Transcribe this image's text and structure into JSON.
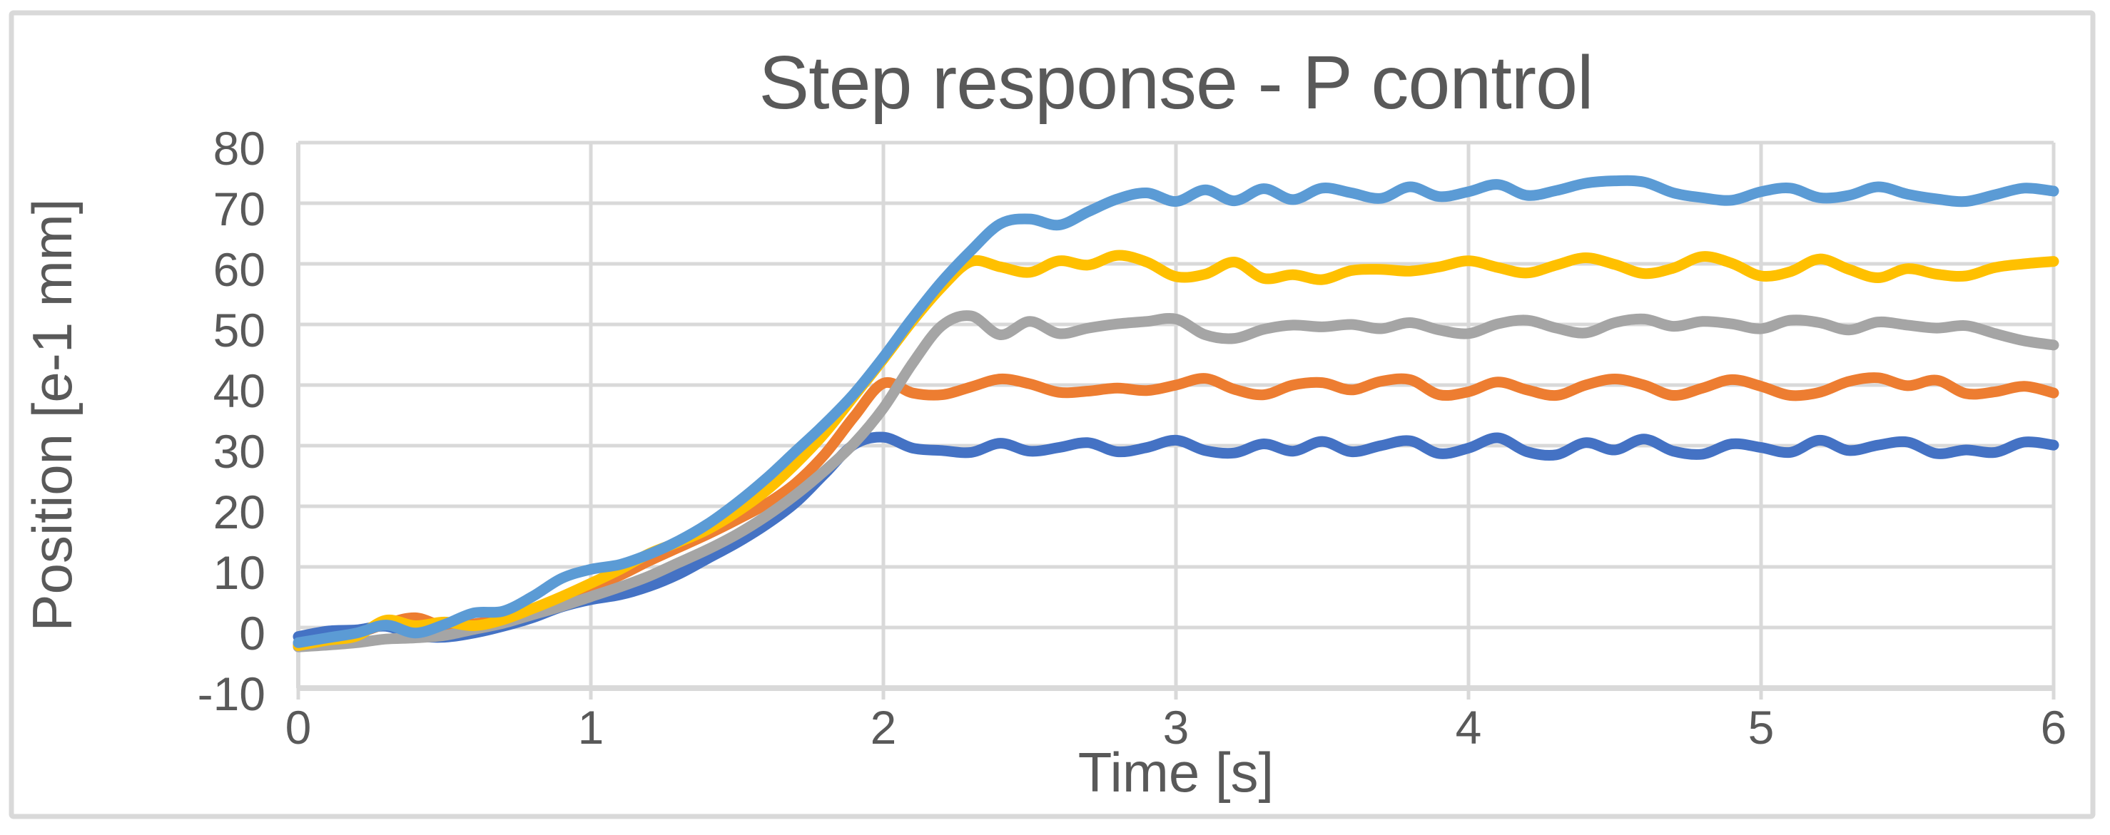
{
  "figure": {
    "background_color": "#FFFFFF",
    "border_color": "#D9D9D9",
    "text_color": "#595959",
    "grid_color": "#D9D9D9"
  },
  "chart_data": {
    "type": "line",
    "title": "Step response - P control",
    "xlabel": "Time [s]",
    "ylabel": "Position [e-1 mm]",
    "x_range": [
      0,
      6
    ],
    "y_range": [
      -10,
      80
    ],
    "x_ticks": [
      0,
      1,
      2,
      3,
      4,
      5,
      6
    ],
    "y_ticks": [
      80,
      70,
      60,
      50,
      40,
      30,
      20,
      10,
      0,
      -10
    ],
    "grid": true,
    "legend_position": "none",
    "line_style": "smooth",
    "x_start": 0,
    "x_step": 0.1,
    "series": [
      {
        "name": "dark-blue (settles ~30)",
        "color": "#4472C4",
        "values": [
          -1.5,
          -0.6,
          -0.4,
          0.2,
          -1.3,
          -1.6,
          -0.9,
          0.2,
          1.6,
          3.4,
          4.6,
          5.4,
          6.8,
          8.8,
          11.4,
          14,
          17,
          20.6,
          25.4,
          30.2,
          31.4,
          29.6,
          29.2,
          28.9,
          30.4,
          29.1,
          29.7,
          30.5,
          29,
          29.7,
          30.9,
          29.2,
          28.8,
          30.3,
          29.1,
          30.7,
          29,
          30,
          30.8,
          28.7,
          29.6,
          31.3,
          29,
          28.5,
          30.5,
          29.3,
          31.1,
          29.1,
          28.6,
          30.3,
          29.7,
          28.9,
          30.9,
          29.2,
          30.1,
          30.6,
          28.7,
          29.3,
          28.9,
          30.6,
          30.1
        ]
      },
      {
        "name": "orange (settles ~40)",
        "color": "#ED7D31",
        "values": [
          -2.8,
          -2,
          -1,
          0.6,
          1.6,
          0.2,
          0.6,
          1.4,
          2.9,
          4.7,
          6.6,
          8.6,
          11,
          13.2,
          15.4,
          17.8,
          20.4,
          23.8,
          28.6,
          34.8,
          40.3,
          38.7,
          38.4,
          39.7,
          41,
          40.2,
          38.8,
          39,
          39.5,
          39.1,
          40,
          41.1,
          39.3,
          38.4,
          40,
          40.4,
          39.2,
          40.6,
          40.9,
          38.4,
          38.9,
          40.5,
          39.2,
          38.3,
          40,
          41,
          40,
          38.3,
          39.5,
          40.9,
          39.8,
          38.3,
          38.8,
          40.6,
          41.2,
          39.9,
          40.8,
          38.6,
          38.9,
          39.8,
          38.7
        ]
      },
      {
        "name": "gray (settles ~50)",
        "color": "#A5A5A5",
        "values": [
          -3.2,
          -2.9,
          -2.5,
          -1.9,
          -1.7,
          -1.3,
          -0.3,
          0.7,
          2.1,
          3.5,
          5.1,
          6.7,
          8.5,
          10.7,
          12.9,
          15.4,
          18.4,
          21.9,
          25.9,
          30.4,
          36.2,
          43.6,
          49.8,
          51.4,
          48.3,
          50.5,
          48.5,
          49.4,
          50.1,
          50.5,
          50.9,
          48.3,
          47.7,
          49.2,
          49.9,
          49.6,
          50,
          49.3,
          50.3,
          49.1,
          48.5,
          50.1,
          50.7,
          49.4,
          48.6,
          50.3,
          50.9,
          49.7,
          50.5,
          50.1,
          49.3,
          50.7,
          50.3,
          49.1,
          50.4,
          49.9,
          49.4,
          49.8,
          48.5,
          47.3,
          46.6
        ]
      },
      {
        "name": "gold (settles ~60)",
        "color": "#FFC000",
        "values": [
          -3,
          -2.1,
          -1.4,
          1.2,
          0.3,
          0.9,
          0.3,
          1.3,
          3.1,
          5.1,
          7.3,
          9.6,
          12.2,
          14.1,
          16.2,
          19.1,
          22.6,
          27,
          32.1,
          38.2,
          44.3,
          50.6,
          56.2,
          60.4,
          59.5,
          58.6,
          60.5,
          59.8,
          61.4,
          60.3,
          57.9,
          58.3,
          60.3,
          57.6,
          58.2,
          57.4,
          58.9,
          59.1,
          58.8,
          59.5,
          60.5,
          59.4,
          58.5,
          59.8,
          61,
          59.9,
          58.4,
          59.3,
          61.2,
          60.1,
          58,
          58.7,
          60.8,
          59.1,
          57.7,
          59.2,
          58.3,
          58,
          59.4,
          60,
          60.4
        ]
      },
      {
        "name": "light-blue (settles ~72)",
        "color": "#5B9BD5",
        "values": [
          -2.5,
          -1.7,
          -0.9,
          0.4,
          -0.9,
          0.5,
          2.4,
          2.7,
          5.1,
          8.1,
          9.6,
          10.4,
          12.1,
          14.3,
          17.1,
          20.6,
          24.6,
          29.1,
          33.6,
          38.6,
          44.6,
          51.1,
          57.1,
          62.2,
          66.6,
          67.4,
          66.4,
          68.6,
          70.7,
          71.7,
          70.3,
          72.2,
          70.4,
          72.4,
          70.6,
          72.5,
          71.7,
          70.8,
          72.7,
          71.1,
          71.9,
          73.1,
          71.3,
          72.1,
          73.3,
          73.7,
          73.5,
          71.7,
          70.9,
          70.5,
          71.9,
          72.5,
          70.9,
          71.3,
          72.7,
          71.5,
          70.7,
          70.3,
          71.4,
          72.5,
          72
        ]
      }
    ]
  }
}
